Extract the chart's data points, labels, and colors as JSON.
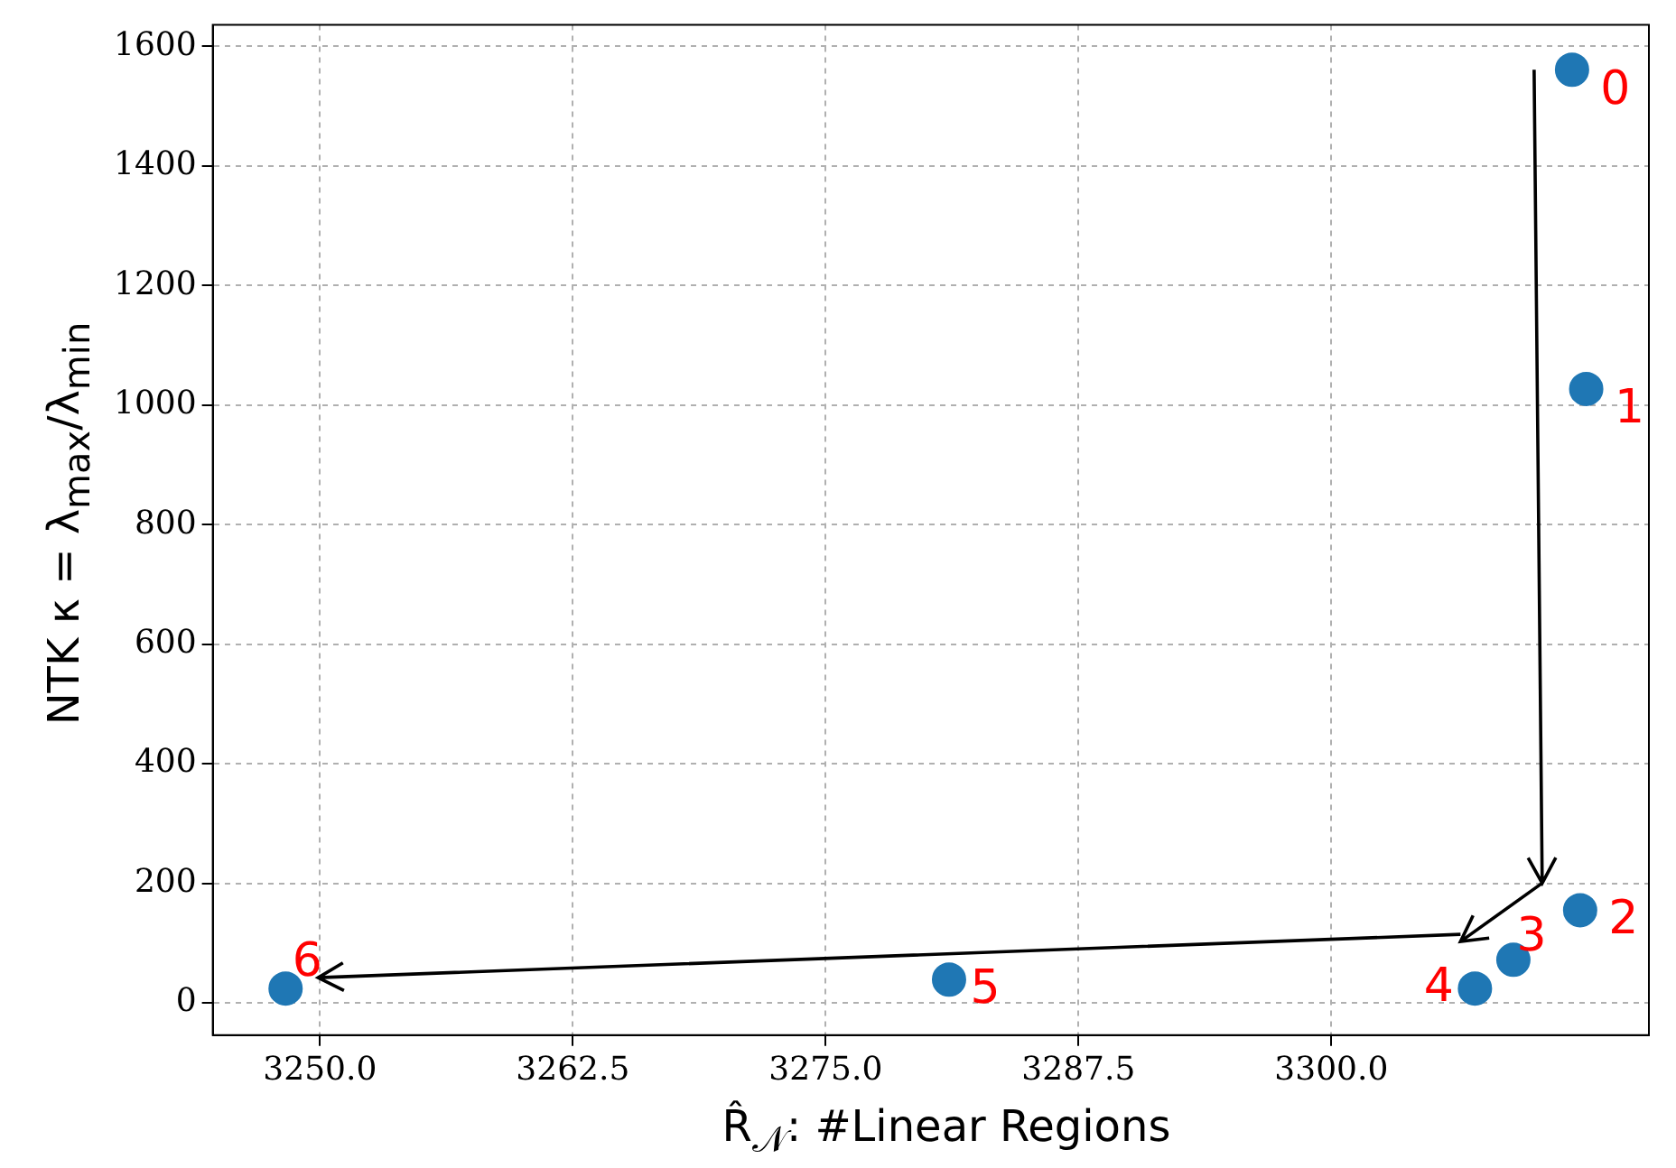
{
  "chart_data": {
    "type": "scatter",
    "xlabel": "R̂$_{𝒩}$: #Linear Regions",
    "ylabel": "NTK κ = λ$_{max}$/λ$_{min}$",
    "x": [
      3311.9,
      3312.6,
      3312.3,
      3309.0,
      3307.1,
      3281.1,
      3248.3
    ],
    "values": [
      1561,
      1027,
      155,
      72,
      24,
      39,
      24
    ],
    "color": "#1f77b4",
    "marker": "circle",
    "xlim": [
      3244.7,
      3315.7
    ],
    "ylim": [
      -54,
      1636
    ],
    "xticks": [
      {
        "value": 3250,
        "label": "3250.0"
      },
      {
        "value": 3262.5,
        "label": "3262.5"
      },
      {
        "value": 3275,
        "label": "3275.0"
      },
      {
        "value": 3287.5,
        "label": "3287.5"
      },
      {
        "value": 3300,
        "label": "3300.0"
      }
    ],
    "yticks": [
      0,
      200,
      400,
      600,
      800,
      1000,
      1200,
      1400,
      1600
    ],
    "grid": true,
    "annotations": [
      {
        "text": "0",
        "x": 3311.9,
        "y": 1561
      },
      {
        "text": "1",
        "x": 3312.6,
        "y": 1027
      },
      {
        "text": "2",
        "x": 3312.3,
        "y": 155
      },
      {
        "text": "3",
        "x": 3309.0,
        "y": 72
      },
      {
        "text": "4",
        "x": 3307.1,
        "y": 24
      },
      {
        "text": "5",
        "x": 3281.1,
        "y": 39
      },
      {
        "text": "6",
        "x": 3248.3,
        "y": 24
      }
    ]
  }
}
